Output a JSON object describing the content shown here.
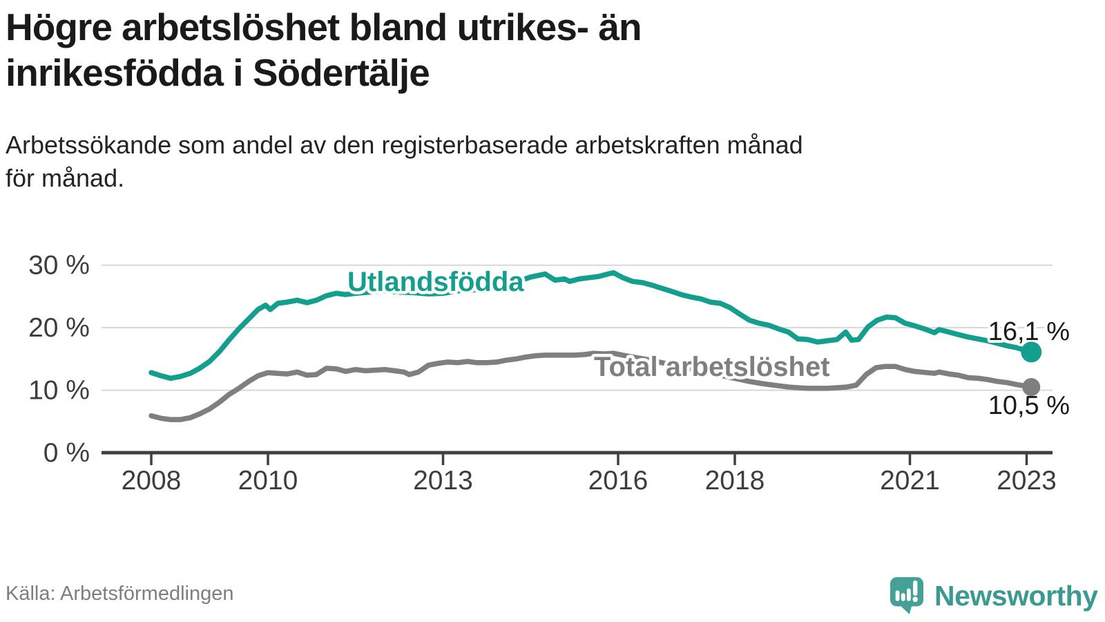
{
  "header": {
    "title_lines": [
      "Högre arbetslöshet bland utrikes- än",
      "inrikesfödda i Södertälje"
    ],
    "subtitle_lines": [
      "Arbetssökande som andel av den registerbaserade arbetskraften månad",
      "för månad."
    ]
  },
  "footer": {
    "source": "Källa: Arbetsförmedlingen",
    "brand": "Newsworthy",
    "logo_icon": "newsworthy-speech-bubble-bar-chart-icon"
  },
  "colors": {
    "teal_series": "#149e8e",
    "gray_series": "#7f7f7f",
    "title_text": "#1a1a1a",
    "axis_text": "#3d3d3d",
    "axis_line": "#3f3f3f",
    "gridline": "#d8d8d8",
    "value_label": "#1a1a1a",
    "source_text": "#7e7e7e",
    "brand_teal": "#3a9a8f",
    "logo_icon_teal": "#45a096",
    "background": "#ffffff"
  },
  "chart_data": {
    "type": "line",
    "title": "Högre arbetslöshet bland utrikes- än inrikesfödda i Södertälje",
    "subtitle": "Arbetssökande som andel av den registerbaserade arbetskraften månad för månad.",
    "xlabel": "",
    "ylabel": "",
    "unit": "%",
    "grid": "horizontal",
    "legend_position": "inline-on-lines",
    "x_axis": {
      "range": [
        2007.15,
        2023.45
      ],
      "ticks": [
        2008,
        2010,
        2013,
        2016,
        2018,
        2021,
        2023
      ],
      "tick_labels": [
        "2008",
        "2010",
        "2013",
        "2016",
        "2018",
        "2021",
        "2023"
      ]
    },
    "y_axis": {
      "range": [
        0,
        30
      ],
      "ticks": [
        0,
        10,
        20,
        30
      ],
      "tick_labels": [
        "0 %",
        "10 %",
        "20 %",
        "30 %"
      ]
    },
    "series": [
      {
        "name": "Utlandsfödda",
        "slug": "utlandsfodda",
        "color": "#149e8e",
        "end_label": "16,1 %",
        "end_value": 16.1,
        "x": [
          2008.0,
          2008.17,
          2008.33,
          2008.5,
          2008.67,
          2008.83,
          2009.0,
          2009.17,
          2009.33,
          2009.5,
          2009.67,
          2009.83,
          2009.96,
          2010.04,
          2010.17,
          2010.33,
          2010.5,
          2010.67,
          2010.83,
          2011.0,
          2011.17,
          2011.33,
          2011.5,
          2011.75,
          2012.0,
          2012.25,
          2012.5,
          2012.75,
          2013.0,
          2013.25,
          2013.5,
          2013.75,
          2014.0,
          2014.25,
          2014.5,
          2014.75,
          2014.92,
          2015.08,
          2015.17,
          2015.33,
          2015.5,
          2015.67,
          2015.83,
          2015.92,
          2016.08,
          2016.25,
          2016.42,
          2016.58,
          2016.75,
          2016.92,
          2017.08,
          2017.25,
          2017.42,
          2017.58,
          2017.75,
          2017.92,
          2018.08,
          2018.25,
          2018.42,
          2018.58,
          2018.75,
          2018.92,
          2019.08,
          2019.25,
          2019.42,
          2019.58,
          2019.75,
          2019.9,
          2020.0,
          2020.12,
          2020.28,
          2020.44,
          2020.6,
          2020.75,
          2020.92,
          2021.08,
          2021.25,
          2021.42,
          2021.5,
          2021.67,
          2021.83,
          2022.0,
          2022.17,
          2022.33,
          2022.5,
          2022.67,
          2022.83,
          2023.08
        ],
        "y": [
          12.8,
          12.3,
          11.9,
          12.2,
          12.7,
          13.5,
          14.6,
          16.2,
          18.0,
          19.8,
          21.4,
          22.9,
          23.6,
          22.9,
          23.9,
          24.1,
          24.4,
          24.0,
          24.4,
          25.1,
          25.5,
          25.3,
          25.5,
          25.7,
          25.9,
          25.7,
          25.6,
          25.4,
          25.5,
          25.9,
          26.0,
          26.4,
          26.8,
          27.3,
          28.1,
          28.6,
          27.6,
          27.8,
          27.4,
          27.8,
          28.0,
          28.2,
          28.6,
          28.8,
          28.0,
          27.4,
          27.2,
          26.8,
          26.3,
          25.8,
          25.3,
          24.9,
          24.6,
          24.1,
          23.9,
          23.2,
          22.2,
          21.2,
          20.7,
          20.4,
          19.8,
          19.3,
          18.2,
          18.1,
          17.7,
          17.9,
          18.1,
          19.3,
          18.0,
          18.1,
          20.1,
          21.2,
          21.7,
          21.6,
          20.7,
          20.3,
          19.8,
          19.2,
          19.7,
          19.3,
          18.9,
          18.5,
          18.2,
          17.9,
          17.5,
          17.1,
          16.8,
          16.1
        ]
      },
      {
        "name": "Total arbetslöshet",
        "slug": "total-arbetsloshet",
        "color": "#7f7f7f",
        "end_label": "10,5 %",
        "end_value": 10.5,
        "x": [
          2008.0,
          2008.17,
          2008.33,
          2008.5,
          2008.67,
          2008.83,
          2009.0,
          2009.17,
          2009.33,
          2009.5,
          2009.67,
          2009.83,
          2010.0,
          2010.17,
          2010.33,
          2010.5,
          2010.67,
          2010.83,
          2011.0,
          2011.17,
          2011.33,
          2011.5,
          2011.67,
          2011.83,
          2012.0,
          2012.17,
          2012.33,
          2012.42,
          2012.58,
          2012.75,
          2012.92,
          2013.08,
          2013.25,
          2013.42,
          2013.58,
          2013.75,
          2013.92,
          2014.08,
          2014.25,
          2014.42,
          2014.58,
          2014.75,
          2014.92,
          2015.08,
          2015.25,
          2015.42,
          2015.58,
          2015.75,
          2015.92,
          2016.08,
          2016.25,
          2016.5,
          2016.75,
          2017.0,
          2017.25,
          2017.5,
          2017.75,
          2018.0,
          2018.25,
          2018.5,
          2018.75,
          2018.92,
          2019.08,
          2019.25,
          2019.42,
          2019.58,
          2019.75,
          2019.92,
          2020.08,
          2020.25,
          2020.42,
          2020.58,
          2020.75,
          2020.92,
          2021.08,
          2021.25,
          2021.42,
          2021.5,
          2021.67,
          2021.83,
          2022.0,
          2022.17,
          2022.33,
          2022.5,
          2022.67,
          2022.83,
          2023.08
        ],
        "y": [
          5.9,
          5.5,
          5.3,
          5.3,
          5.6,
          6.2,
          7.0,
          8.1,
          9.3,
          10.3,
          11.4,
          12.3,
          12.8,
          12.7,
          12.6,
          12.9,
          12.4,
          12.5,
          13.5,
          13.4,
          13.0,
          13.3,
          13.1,
          13.2,
          13.3,
          13.1,
          12.9,
          12.5,
          12.9,
          14.0,
          14.3,
          14.5,
          14.4,
          14.6,
          14.4,
          14.4,
          14.5,
          14.8,
          15.0,
          15.3,
          15.5,
          15.6,
          15.6,
          15.6,
          15.6,
          15.7,
          15.9,
          15.8,
          15.9,
          15.6,
          15.3,
          14.9,
          14.4,
          13.9,
          13.4,
          12.9,
          12.4,
          11.9,
          11.4,
          11.0,
          10.7,
          10.5,
          10.4,
          10.3,
          10.3,
          10.3,
          10.4,
          10.5,
          10.8,
          12.5,
          13.6,
          13.8,
          13.8,
          13.3,
          13.0,
          12.85,
          12.7,
          12.9,
          12.6,
          12.4,
          12.0,
          11.9,
          11.7,
          11.4,
          11.2,
          10.9,
          10.5
        ]
      }
    ]
  }
}
